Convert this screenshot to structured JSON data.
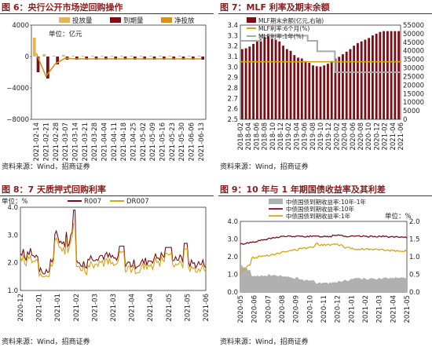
{
  "panels": [
    {
      "title": "图 6：央行公开市场逆回购操作",
      "source": "资料来源：Wind，招商证券"
    },
    {
      "title": "图 7：MLF 利率及期末余额",
      "source": "资料来源：Wind，招商证券"
    },
    {
      "title": "图 8：7 天质押式回购利率",
      "source": "资料来源：Wind，招商证券"
    },
    {
      "title": "图 9：10 年与 1 年期国债收益率及其利差",
      "source": "资料来源：Wind，招商证券"
    }
  ],
  "chart_data": [
    {
      "type": "bar",
      "unit_label": "单位：亿元",
      "categories": [
        "2021-02-14",
        "2021-02-21",
        "2021-02-28",
        "2021-03-07",
        "2021-03-14",
        "2021-03-21",
        "2021-03-28",
        "2021-04-04",
        "2021-04-11",
        "2021-04-18",
        "2021-04-25",
        "2021-05-02",
        "2021-05-09",
        "2021-05-16",
        "2021-05-23",
        "2021-05-30",
        "2021-06-06",
        "2021-06-13"
      ],
      "ylim": [
        -8000,
        4000
      ],
      "yticks": [
        4000,
        0,
        -4000,
        -8000
      ],
      "series": [
        {
          "name": "投放量",
          "color": "#e2b55a",
          "values": [
            2400,
            300,
            100,
            200,
            100,
            100,
            100,
            100,
            100,
            100,
            100,
            100,
            100,
            100,
            100,
            100,
            100,
            100
          ]
        },
        {
          "name": "到期量",
          "color": "#7b0e14",
          "values": [
            -2000,
            -2800,
            -1000,
            -400,
            -400,
            -400,
            -400,
            -400,
            -400,
            -400,
            -400,
            -400,
            -400,
            -400,
            -400,
            -400,
            -400,
            -400
          ]
        },
        {
          "name": "净投放",
          "color": "#d4911c",
          "values": [
            400,
            -2500,
            -900,
            -200,
            -300,
            -300,
            -300,
            -300,
            -300,
            -300,
            -300,
            -300,
            -300,
            -300,
            -300,
            -300,
            -300,
            -300
          ]
        }
      ]
    },
    {
      "type": "bar+line",
      "categories": [
        "2018-02",
        "2018-04",
        "2018-06",
        "2018-08",
        "2018-10",
        "2018-12",
        "2019-02",
        "2019-04",
        "2019-06",
        "2019-08",
        "2019-10",
        "2019-12",
        "2020-02",
        "2020-04",
        "2020-06",
        "2020-08",
        "2020-10",
        "2020-12",
        "2021-02",
        "2021-04",
        "2021-06"
      ],
      "ylim_left": [
        2.5,
        3.4
      ],
      "yticks_left": [
        3.4,
        3.3,
        3.2,
        3.1,
        3.0,
        2.9,
        2.8,
        2.7,
        2.6,
        2.5
      ],
      "ylim_right": [
        0,
        55000
      ],
      "yticks_right": [
        55000,
        50000,
        45000,
        40000,
        35000,
        30000,
        25000,
        20000,
        15000,
        10000,
        5000,
        0
      ],
      "balance": {
        "name": "MLF期末余额(亿元,右轴)",
        "color": "#7b0e14",
        "axis": "right",
        "values": [
          41000,
          41500,
          42500,
          44000,
          45500,
          47000,
          48000,
          48500,
          47000,
          46500,
          45500,
          43000,
          41000,
          40000,
          37500,
          36000,
          35500,
          34000,
          33000,
          31500,
          31000,
          30800,
          31500,
          32500,
          34000,
          35500,
          36500,
          38000,
          39500,
          41000,
          43000,
          44500,
          45500,
          46500,
          47500,
          49000,
          50000,
          51000,
          51500,
          51500,
          51500,
          51500,
          51500
        ]
      },
      "rate_6m": {
        "name": "MLF利率:6个月(%)",
        "color": "#d6a319",
        "axis": "left",
        "values": [
          3.05,
          3.05
        ]
      },
      "rate_1y": {
        "name": "MLF利率:1年(%)",
        "color": "#a9a9a9",
        "axis": "left",
        "steps": [
          [
            0,
            3.25
          ],
          [
            0.13,
            3.3
          ],
          [
            0.4,
            3.3
          ],
          [
            0.42,
            3.25
          ],
          [
            0.465,
            3.25
          ],
          [
            0.48,
            3.15
          ],
          [
            0.575,
            3.15
          ],
          [
            0.59,
            2.95
          ],
          [
            1.0,
            2.95
          ]
        ]
      }
    },
    {
      "type": "line",
      "unit_label": "单位：%",
      "categories": [
        "2020-12",
        "2021-01",
        "2021-01",
        "2021-02",
        "2021-03",
        "2021-03",
        "2021-04",
        "2021-04",
        "2021-05",
        "2021-05",
        "2021-06"
      ],
      "ylim": [
        1.0,
        4.0
      ],
      "yticks": [
        4.0,
        3.0,
        2.0,
        1.0
      ],
      "series": [
        {
          "name": "R007",
          "color": "#7b0e14"
        },
        {
          "name": "DR007",
          "color": "#d6a319"
        }
      ]
    },
    {
      "type": "area+line",
      "unit_label": "单位：%",
      "categories": [
        "2020-05",
        "2020-06",
        "2020-07",
        "2020-08",
        "2020-09",
        "2020-10",
        "2020-11",
        "2020-12",
        "2021-01",
        "2021-02",
        "2021-03",
        "2021-04",
        "2021-05"
      ],
      "ylim_left": [
        0.0,
        4.0
      ],
      "yticks_left": [
        4.0,
        3.0,
        2.0,
        1.0,
        0.0
      ],
      "ylim_right": [
        0.0,
        2.0
      ],
      "yticks_right": [
        2.0,
        1.5,
        1.0,
        0.5,
        0.0
      ],
      "series": [
        {
          "name": "中债国债到期收益率:10年-1年",
          "color": "#b0b0b0"
        },
        {
          "name": "中债国债到期收益率:10年",
          "color": "#7b0e14"
        },
        {
          "name": "中债国债到期收益率:1年",
          "color": "#d6a319"
        }
      ]
    }
  ]
}
